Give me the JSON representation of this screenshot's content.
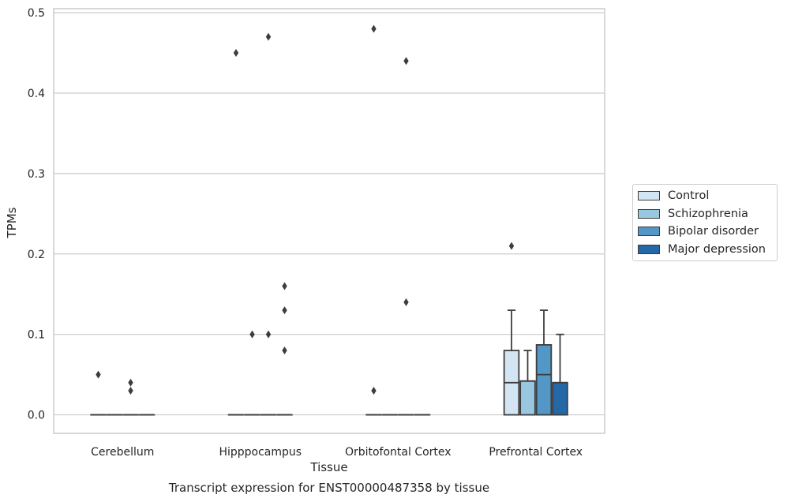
{
  "chart_data": {
    "type": "box",
    "title": "Transcript expression for ENST00000487358 by tissue",
    "xlabel": "Tissue",
    "ylabel": "TPMs",
    "ylim": [
      -0.023,
      0.505
    ],
    "yticks": [
      "0.0",
      "0.1",
      "0.2",
      "0.3",
      "0.4",
      "0.5"
    ],
    "grid": true,
    "legend_position": "right",
    "categories": [
      "Cerebellum",
      "Hipppocampus",
      "Orbitofontal Cortex",
      "Prefrontal Cortex"
    ],
    "series": [
      {
        "name": "Control",
        "color": "#d3e4f2",
        "boxes": [
          {
            "q1": 0,
            "median": 0,
            "q3": 0,
            "whislo": 0,
            "whishi": 0,
            "fliers": [
              0.05
            ]
          },
          {
            "q1": 0,
            "median": 0,
            "q3": 0,
            "whislo": 0,
            "whishi": 0,
            "fliers": [
              0.45
            ]
          },
          {
            "q1": 0,
            "median": 0,
            "q3": 0,
            "whislo": 0,
            "whishi": 0,
            "fliers": [
              0.48,
              0.03
            ]
          },
          {
            "q1": 0,
            "median": 0.04,
            "q3": 0.08,
            "whislo": 0,
            "whishi": 0.13,
            "fliers": [
              0.21
            ]
          }
        ]
      },
      {
        "name": "Schizophrenia",
        "color": "#9ac7e0",
        "boxes": [
          {
            "q1": 0,
            "median": 0,
            "q3": 0,
            "whislo": 0,
            "whishi": 0,
            "fliers": []
          },
          {
            "q1": 0,
            "median": 0,
            "q3": 0,
            "whislo": 0,
            "whishi": 0,
            "fliers": [
              0.1
            ]
          },
          {
            "q1": 0,
            "median": 0,
            "q3": 0,
            "whislo": 0,
            "whishi": 0,
            "fliers": []
          },
          {
            "q1": 0,
            "median": 0.042,
            "q3": 0.042,
            "whislo": 0,
            "whishi": 0.08,
            "fliers": []
          }
        ]
      },
      {
        "name": "Bipolar disorder",
        "color": "#5397c6",
        "boxes": [
          {
            "q1": 0,
            "median": 0,
            "q3": 0,
            "whislo": 0,
            "whishi": 0,
            "fliers": [
              0.04,
              0.03
            ]
          },
          {
            "q1": 0,
            "median": 0,
            "q3": 0,
            "whislo": 0,
            "whishi": 0,
            "fliers": [
              0.47,
              0.1
            ]
          },
          {
            "q1": 0,
            "median": 0,
            "q3": 0,
            "whislo": 0,
            "whishi": 0,
            "fliers": [
              0.44,
              0.14
            ]
          },
          {
            "q1": 0,
            "median": 0.05,
            "q3": 0.087,
            "whislo": 0,
            "whishi": 0.13,
            "fliers": []
          }
        ]
      },
      {
        "name": "Major depression",
        "color": "#2568a8",
        "boxes": [
          {
            "q1": 0,
            "median": 0,
            "q3": 0,
            "whislo": 0,
            "whishi": 0,
            "fliers": []
          },
          {
            "q1": 0,
            "median": 0,
            "q3": 0,
            "whislo": 0,
            "whishi": 0,
            "fliers": [
              0.16,
              0.13,
              0.08
            ]
          },
          {
            "q1": 0,
            "median": 0,
            "q3": 0,
            "whislo": 0,
            "whishi": 0,
            "fliers": []
          },
          {
            "q1": 0,
            "median": 0.04,
            "q3": 0.04,
            "whislo": 0,
            "whishi": 0.1,
            "fliers": []
          }
        ]
      }
    ]
  }
}
